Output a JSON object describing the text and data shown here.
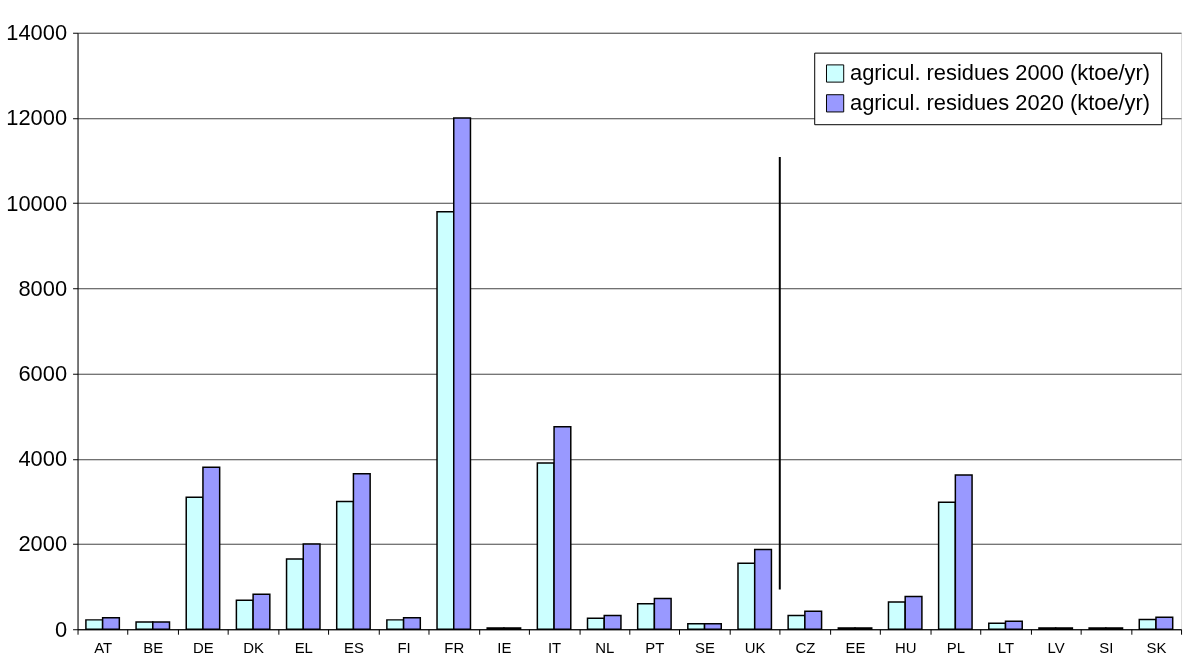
{
  "chart_data": {
    "type": "bar",
    "categories": [
      "AT",
      "BE",
      "DE",
      "DK",
      "EL",
      "ES",
      "FI",
      "FR",
      "IE",
      "IT",
      "NL",
      "PT",
      "SE",
      "UK",
      "CZ",
      "EE",
      "HU",
      "PL",
      "LT",
      "LV",
      "SI",
      "SK"
    ],
    "series": [
      {
        "name": "agricul. residues 2000 (ktoe/yr)",
        "color": "#ccffff",
        "values": [
          220,
          170,
          3100,
          680,
          1650,
          3000,
          220,
          9800,
          30,
          3900,
          260,
          600,
          130,
          1550,
          320,
          30,
          640,
          2980,
          140,
          30,
          30,
          230
        ]
      },
      {
        "name": "agricul. residues 2020 (ktoe/yr)",
        "color": "#9999ff",
        "values": [
          270,
          170,
          3800,
          820,
          2000,
          3650,
          270,
          12000,
          30,
          4750,
          320,
          720,
          130,
          1870,
          420,
          30,
          770,
          3620,
          190,
          30,
          30,
          280
        ]
      }
    ],
    "ylim": [
      0,
      14000
    ],
    "yticks": [
      0,
      2000,
      4000,
      6000,
      8000,
      10000,
      12000,
      14000
    ],
    "grid": "y",
    "legend": "top right",
    "ref_lines": [
      {
        "axis": "x",
        "value": "CZ"
      }
    ]
  }
}
